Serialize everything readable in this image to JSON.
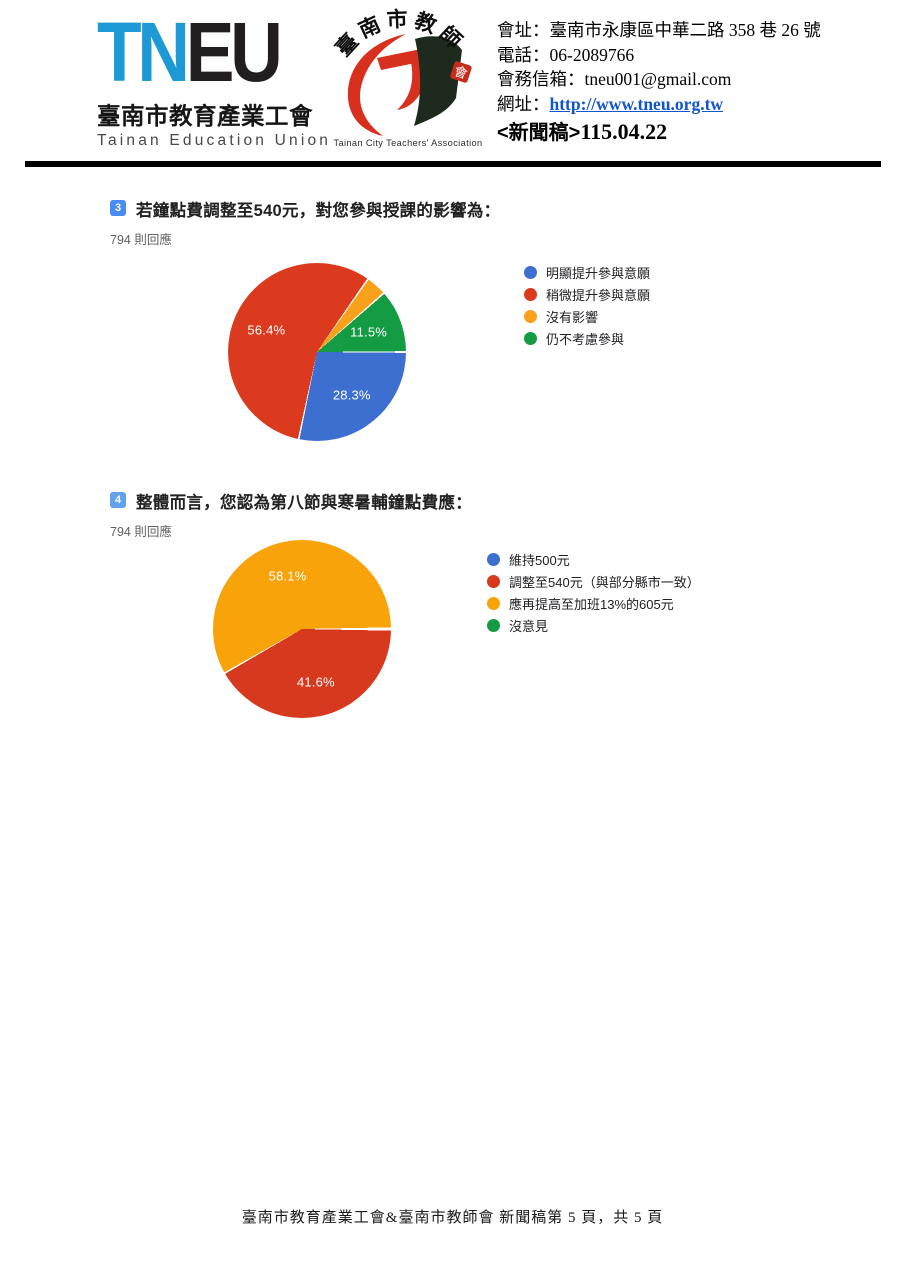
{
  "header": {
    "logo": {
      "tn": "TN",
      "eu": "EU",
      "org_zh": "臺南市教育產業工會",
      "org_en": "Tainan Education Union"
    },
    "seal": {
      "arc_text": "臺南市教師",
      "seal_char": "會",
      "caption": "Tainan City Teachers' Association"
    },
    "contact": {
      "address": "會址：臺南市永康區中華二路 358 巷 26 號",
      "phone": "電話：06-2089766",
      "email": "會務信箱：tneu001@gmail.com",
      "website_label": "網址：",
      "website_url": "http://www.tneu.org.tw",
      "press_tag": "<新聞稿>",
      "press_date": "115.04.22"
    }
  },
  "chart_data": [
    {
      "type": "pie",
      "badge": "3",
      "badge_color": "#4a8bf2",
      "title": "若鐘點費調整至540元，對您參與授課的影響為：",
      "responses": "794 則回應",
      "start_angle": 90,
      "label_radius": 0.62,
      "legend_position": "right",
      "slices": [
        {
          "label": "明顯提升參與意願",
          "value": 28.3,
          "pct_label": "28.3%",
          "color": "#3d6fd1"
        },
        {
          "label": "稍微提升參與意願",
          "value": 56.4,
          "pct_label": "56.4%",
          "color": "#db3a1e"
        },
        {
          "label": "沒有影響",
          "value": 3.8,
          "pct_label": "",
          "color": "#f9a11b"
        },
        {
          "label": "仍不考慮參與",
          "value": 11.5,
          "pct_label": "11.5%",
          "color": "#149c44"
        }
      ]
    },
    {
      "type": "pie",
      "badge": "4",
      "badge_color": "#63a0ee",
      "title": "整體而言，您認為第八節與寒暑輔鐘點費應：",
      "responses": "794 則回應",
      "start_angle": 90,
      "label_radius": 0.62,
      "legend_position": "right",
      "slices": [
        {
          "label": "維持500元",
          "value": 0.15,
          "pct_label": "",
          "color": "#3d6fd1"
        },
        {
          "label": "調整至540元（與部分縣市一致）",
          "value": 41.6,
          "pct_label": "41.6%",
          "color": "#d7391e"
        },
        {
          "label": "應再提高至加班13%的605元",
          "value": 58.1,
          "pct_label": "58.1%",
          "color": "#f9a30b"
        },
        {
          "label": "沒意見",
          "value": 0.15,
          "pct_label": "",
          "color": "#149c44"
        }
      ]
    }
  ],
  "footer": {
    "text": "臺南市教育產業工會&臺南市教師會 新聞稿第 5 頁，共 5 頁"
  }
}
